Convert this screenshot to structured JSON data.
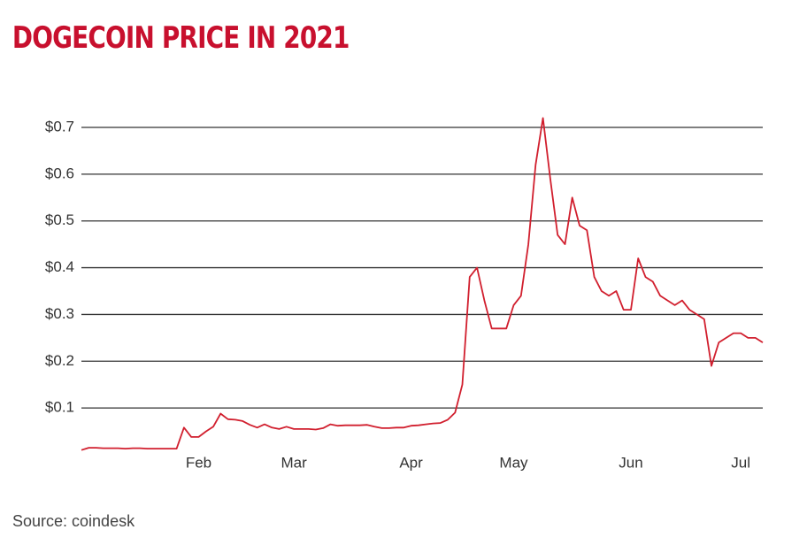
{
  "chart_data": {
    "type": "line",
    "title": "DOGECOIN PRICE IN 2021",
    "source": "Source: coindesk",
    "categories": [
      null,
      null,
      null,
      null,
      null,
      null,
      null,
      null,
      null,
      null,
      null,
      null,
      null,
      null,
      null,
      null,
      "Feb",
      null,
      null,
      null,
      null,
      null,
      null,
      null,
      null,
      null,
      null,
      null,
      null,
      "Mar",
      null,
      null,
      null,
      null,
      null,
      null,
      null,
      null,
      null,
      null,
      null,
      null,
      null,
      null,
      null,
      "Apr",
      null,
      null,
      null,
      null,
      null,
      null,
      null,
      null,
      null,
      null,
      null,
      null,
      null,
      "May",
      null,
      null,
      null,
      null,
      null,
      null,
      null,
      null,
      null,
      null,
      null,
      null,
      null,
      null,
      null,
      "Jun",
      null,
      null,
      null,
      null,
      null,
      null,
      null,
      null,
      null,
      null,
      null,
      null,
      null,
      null,
      "Jul",
      null,
      null,
      null
    ],
    "series": [
      {
        "name": "Dogecoin",
        "color": "#d11f2e",
        "values": [
          0.01,
          0.015,
          0.015,
          0.014,
          0.014,
          0.014,
          0.013,
          0.014,
          0.014,
          0.013,
          0.013,
          0.013,
          0.013,
          0.013,
          0.058,
          0.038,
          0.038,
          0.05,
          0.06,
          0.088,
          0.076,
          0.075,
          0.072,
          0.064,
          0.058,
          0.065,
          0.058,
          0.055,
          0.06,
          0.055,
          0.055,
          0.055,
          0.054,
          0.057,
          0.065,
          0.062,
          0.063,
          0.063,
          0.063,
          0.064,
          0.06,
          0.057,
          0.057,
          0.058,
          0.058,
          0.062,
          0.063,
          0.065,
          0.067,
          0.068,
          0.075,
          0.09,
          0.15,
          0.38,
          0.4,
          0.33,
          0.27,
          0.27,
          0.27,
          0.32,
          0.34,
          0.45,
          0.62,
          0.72,
          0.59,
          0.47,
          0.45,
          0.55,
          0.49,
          0.48,
          0.38,
          0.35,
          0.34,
          0.35,
          0.31,
          0.31,
          0.42,
          0.38,
          0.37,
          0.34,
          0.33,
          0.32,
          0.33,
          0.31,
          0.3,
          0.29,
          0.19,
          0.24,
          0.25,
          0.26,
          0.26,
          0.25,
          0.25,
          0.24
        ]
      }
    ],
    "ylim": [
      0,
      0.7
    ],
    "yticks": [
      {
        "value": 0.1,
        "label": "$0.1"
      },
      {
        "value": 0.2,
        "label": "$0.2"
      },
      {
        "value": 0.3,
        "label": "$0.3"
      },
      {
        "value": 0.4,
        "label": "$0.4"
      },
      {
        "value": 0.5,
        "label": "$0.5"
      },
      {
        "value": 0.6,
        "label": "$0.6"
      },
      {
        "value": 0.7,
        "label": "$0.7"
      }
    ],
    "grid": true
  }
}
